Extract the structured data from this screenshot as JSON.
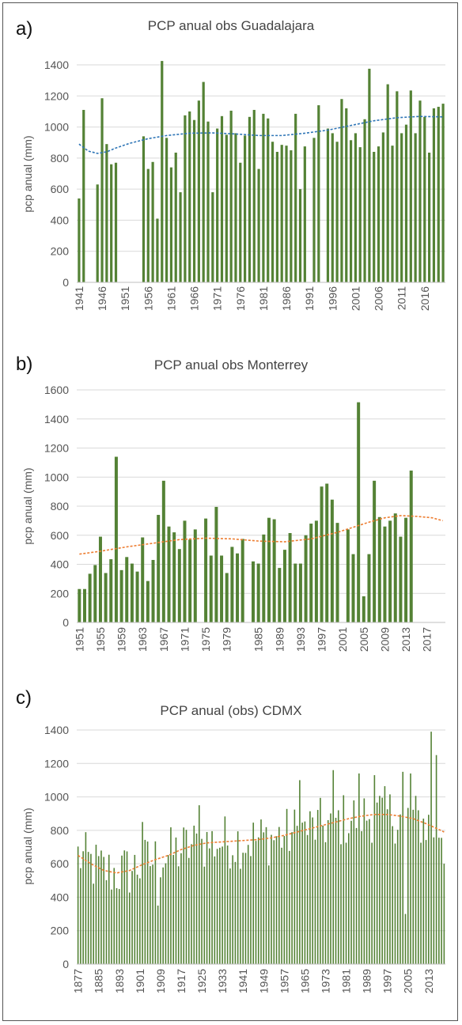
{
  "chart_data": [
    {
      "panel": "a)",
      "type": "bar",
      "title": "PCP anual obs Guadalajara",
      "xlabel": "",
      "ylabel": "pcp anual (mm)",
      "ylim": [
        0,
        1400
      ],
      "yticks": [
        0,
        200,
        400,
        600,
        800,
        1000,
        1200,
        1400
      ],
      "xtick_labels": [
        "1941",
        "1946",
        "1951",
        "1956",
        "1961",
        "1966",
        "1971",
        "1976",
        "1981",
        "1986",
        "1991",
        "1996",
        "2001",
        "2006",
        "2011",
        "2016"
      ],
      "x_start": 1941,
      "x_end": 2020,
      "bar_color": "#548235",
      "trend_color": "#2e75b6",
      "grid": true,
      "x": [
        1941,
        1942,
        1943,
        1944,
        1945,
        1946,
        1947,
        1948,
        1949,
        1950,
        1951,
        1952,
        1953,
        1954,
        1955,
        1956,
        1957,
        1958,
        1959,
        1960,
        1961,
        1962,
        1963,
        1964,
        1965,
        1966,
        1967,
        1968,
        1969,
        1970,
        1971,
        1972,
        1973,
        1974,
        1975,
        1976,
        1977,
        1978,
        1979,
        1980,
        1981,
        1982,
        1983,
        1984,
        1985,
        1986,
        1987,
        1988,
        1989,
        1990,
        1991,
        1992,
        1993,
        1994,
        1995,
        1996,
        1997,
        1998,
        1999,
        2000,
        2001,
        2002,
        2003,
        2004,
        2005,
        2006,
        2007,
        2008,
        2009,
        2010,
        2011,
        2012,
        2013,
        2014,
        2015,
        2016,
        2017,
        2018,
        2019,
        2020
      ],
      "values": [
        540,
        1110,
        null,
        null,
        630,
        1185,
        890,
        760,
        770,
        null,
        null,
        null,
        null,
        null,
        940,
        730,
        775,
        410,
        1425,
        930,
        740,
        835,
        580,
        1075,
        1100,
        1045,
        1170,
        1290,
        1035,
        580,
        990,
        1070,
        950,
        1105,
        960,
        770,
        945,
        1065,
        1110,
        730,
        1085,
        1055,
        905,
        840,
        885,
        880,
        850,
        1085,
        600,
        875,
        null,
        930,
        1140,
        null,
        990,
        960,
        905,
        1180,
        1120,
        915,
        960,
        870,
        1050,
        1375,
        840,
        875,
        965,
        1275,
        880,
        1230,
        960,
        1015,
        1235,
        960,
        1170,
        1065,
        835,
        1120,
        1130,
        1150
      ],
      "trend_x": [
        1941,
        1943,
        1945,
        1947,
        1949,
        1952,
        1956,
        1960,
        1965,
        1970,
        1975,
        1980,
        1985,
        1990,
        1995,
        2000,
        2005,
        2010,
        2015,
        2020
      ],
      "trend_y": [
        890,
        845,
        830,
        840,
        865,
        895,
        925,
        945,
        960,
        962,
        955,
        945,
        945,
        960,
        980,
        1010,
        1040,
        1060,
        1068,
        1065
      ]
    },
    {
      "panel": "b)",
      "type": "bar",
      "title": "PCP anual obs Monterrey",
      "xlabel": "",
      "ylabel": "pcp anual (mm)",
      "ylim": [
        0,
        1600
      ],
      "yticks": [
        0,
        200,
        400,
        600,
        800,
        1000,
        1200,
        1400,
        1600
      ],
      "xtick_labels": [
        "1951",
        "1955",
        "1959",
        "1963",
        "1967",
        "1971",
        "1975",
        "1979",
        "1985",
        "1989",
        "1993",
        "1997",
        "2001",
        "2005",
        "2009",
        "2013",
        "2017"
      ],
      "x_start": 1951,
      "x_end": 2020,
      "bar_color": "#548235",
      "trend_color": "#ed7d31",
      "grid": true,
      "x": [
        1951,
        1952,
        1953,
        1954,
        1955,
        1956,
        1957,
        1958,
        1959,
        1960,
        1961,
        1962,
        1963,
        1964,
        1965,
        1966,
        1967,
        1968,
        1969,
        1970,
        1971,
        1972,
        1973,
        1974,
        1975,
        1976,
        1977,
        1978,
        1979,
        1980,
        1981,
        1982,
        1983,
        1984,
        1985,
        1986,
        1987,
        1988,
        1989,
        1990,
        1991,
        1992,
        1993,
        1994,
        1995,
        1996,
        1997,
        1998,
        1999,
        2000,
        2001,
        2002,
        2003,
        2004,
        2005,
        2006,
        2007,
        2008,
        2009,
        2010,
        2011,
        2012,
        2013,
        2014,
        2015,
        2016,
        2017,
        2018,
        2019,
        2020
      ],
      "values": [
        230,
        230,
        335,
        395,
        590,
        340,
        435,
        1140,
        360,
        450,
        405,
        350,
        585,
        285,
        430,
        740,
        975,
        660,
        620,
        505,
        700,
        570,
        640,
        null,
        715,
        460,
        795,
        460,
        340,
        520,
        475,
        575,
        null,
        420,
        405,
        605,
        720,
        710,
        375,
        500,
        615,
        405,
        405,
        600,
        680,
        700,
        935,
        955,
        845,
        685,
        null,
        640,
        470,
        1515,
        180,
        470,
        975,
        725,
        660,
        700,
        750,
        590,
        720,
        1045,
        null,
        null,
        null,
        null,
        null,
        null
      ],
      "trend_x": [
        1951,
        1955,
        1960,
        1965,
        1970,
        1975,
        1980,
        1985,
        1990,
        1995,
        2000,
        2003,
        2006,
        2009,
        2012,
        2015,
        2018,
        2020
      ],
      "trend_y": [
        470,
        490,
        520,
        545,
        570,
        580,
        575,
        560,
        555,
        575,
        620,
        655,
        690,
        720,
        735,
        730,
        720,
        700
      ]
    },
    {
      "panel": "c)",
      "type": "bar",
      "title": "PCP anual (obs) CDMX",
      "xlabel": "",
      "ylabel": "pcp anual (mm)",
      "ylim": [
        0,
        1400
      ],
      "yticks": [
        0,
        200,
        400,
        600,
        800,
        1000,
        1200,
        1400
      ],
      "xtick_labels": [
        "1877",
        "1885",
        "1893",
        "1901",
        "1909",
        "1917",
        "1925",
        "1933",
        "1941",
        "1949",
        "1957",
        "1965",
        "1973",
        "1981",
        "1989",
        "1997",
        "2005",
        "2013"
      ],
      "x_start": 1877,
      "x_end": 2019,
      "bar_color": "#548235",
      "trend_color": "#ed7d31",
      "grid": true,
      "trend_x": [
        1877,
        1882,
        1887,
        1892,
        1897,
        1902,
        1907,
        1912,
        1917,
        1922,
        1927,
        1932,
        1937,
        1942,
        1947,
        1952,
        1957,
        1962,
        1967,
        1972,
        1977,
        1982,
        1987,
        1992,
        1997,
        2002,
        2007,
        2012,
        2017,
        2019
      ],
      "trend_y": [
        650,
        600,
        560,
        545,
        560,
        595,
        625,
        650,
        685,
        710,
        725,
        730,
        735,
        740,
        745,
        755,
        770,
        790,
        810,
        830,
        850,
        870,
        885,
        895,
        895,
        885,
        870,
        840,
        805,
        790
      ]
    }
  ]
}
